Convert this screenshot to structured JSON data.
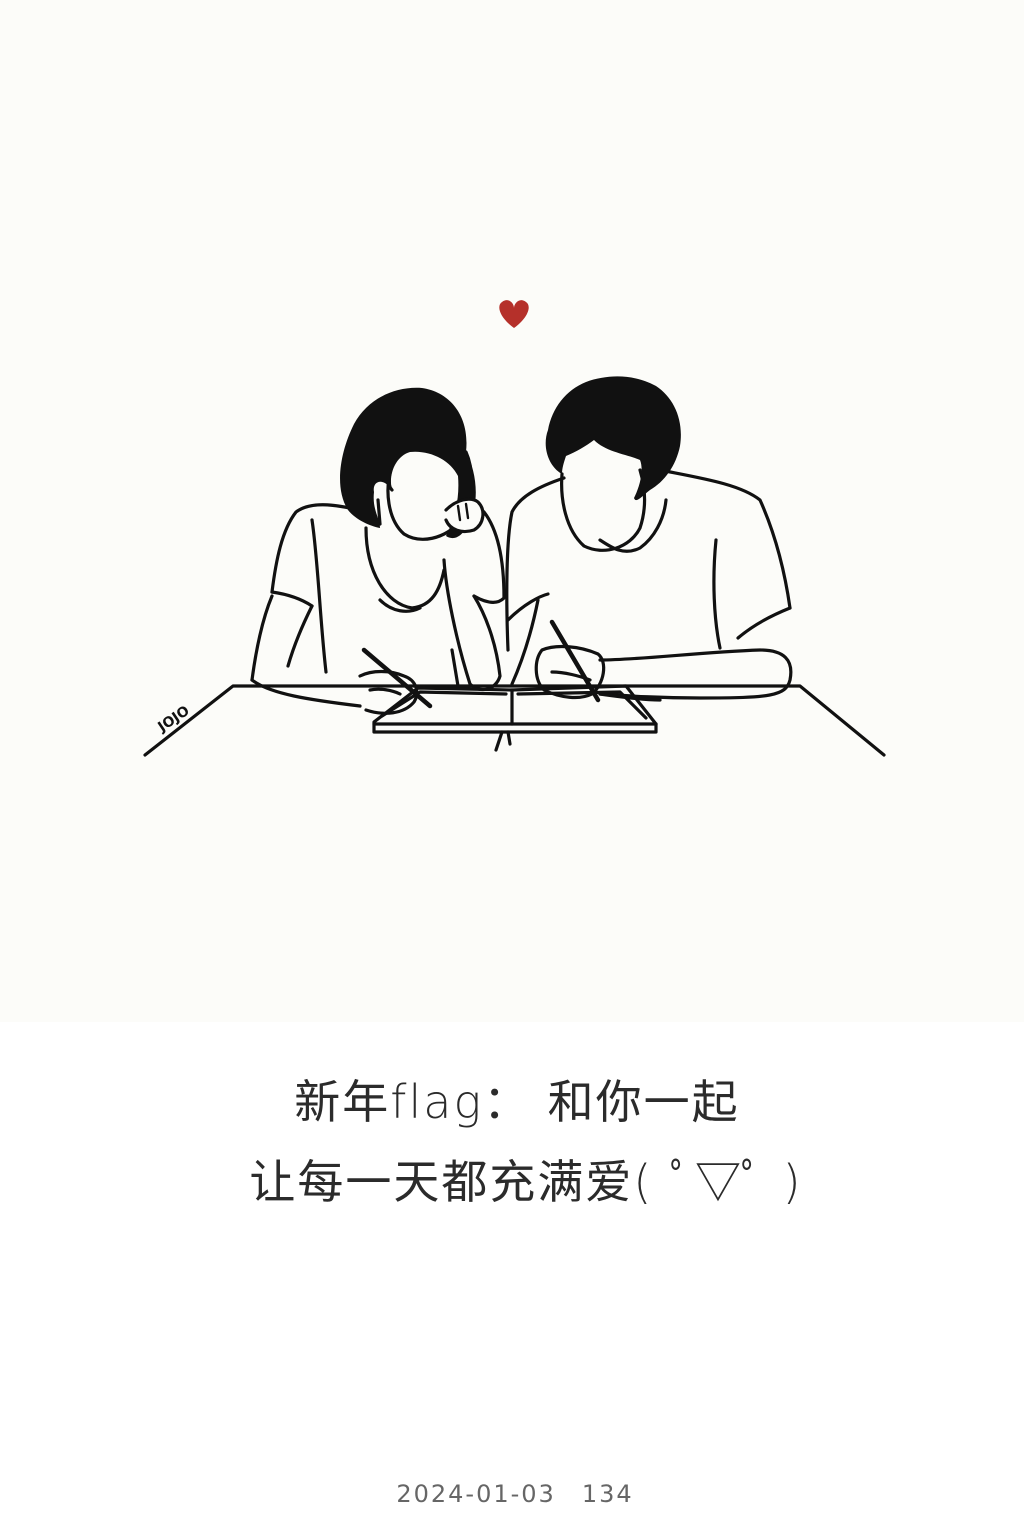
{
  "caption": {
    "line1": "新年flag： 和你一起",
    "line2": "让每一天都充满爱( ﾟ▽ﾟ )"
  },
  "footer": {
    "date": "2024-01-03",
    "count": "134"
  },
  "illustration": {
    "signature": "JOJO",
    "heart_color": "#b5302a",
    "ink_color": "#111111"
  }
}
